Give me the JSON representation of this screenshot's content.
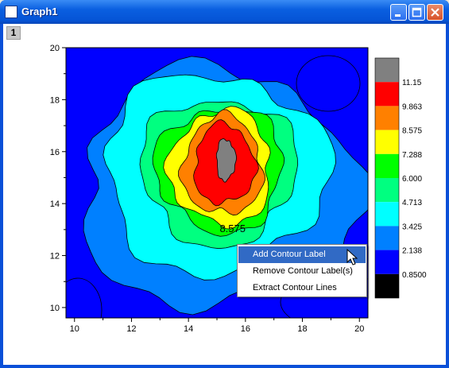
{
  "window": {
    "title": "Graph1",
    "layer_tab": "1"
  },
  "chart_data": {
    "type": "heatmap",
    "subtype": "filled contour",
    "title": "",
    "xlabel": "",
    "ylabel": "",
    "xlim": [
      9.7,
      20.3
    ],
    "ylim": [
      9.6,
      20.0
    ],
    "x_ticks": [
      "10",
      "12",
      "14",
      "16",
      "18",
      "20"
    ],
    "y_ticks": [
      "10",
      "12",
      "14",
      "16",
      "18",
      "20"
    ],
    "peak": {
      "x": 15.2,
      "y": 15.5
    },
    "contour_label": "8.575",
    "colorbar": {
      "levels": [
        "11.15",
        "9.863",
        "8.575",
        "7.288",
        "6.000",
        "4.713",
        "3.425",
        "2.138",
        "0.8500"
      ],
      "colors": [
        "#808080",
        "#ff0000",
        "#ff8000",
        "#ffff00",
        "#00ff00",
        "#00ff80",
        "#00ffff",
        "#0080ff",
        "#0000ff",
        "#000000"
      ]
    }
  },
  "context_menu": {
    "items": [
      {
        "label": "Add Contour Label"
      },
      {
        "label": "Remove Contour Label(s)"
      },
      {
        "label": "Extract Contour Lines"
      }
    ]
  }
}
